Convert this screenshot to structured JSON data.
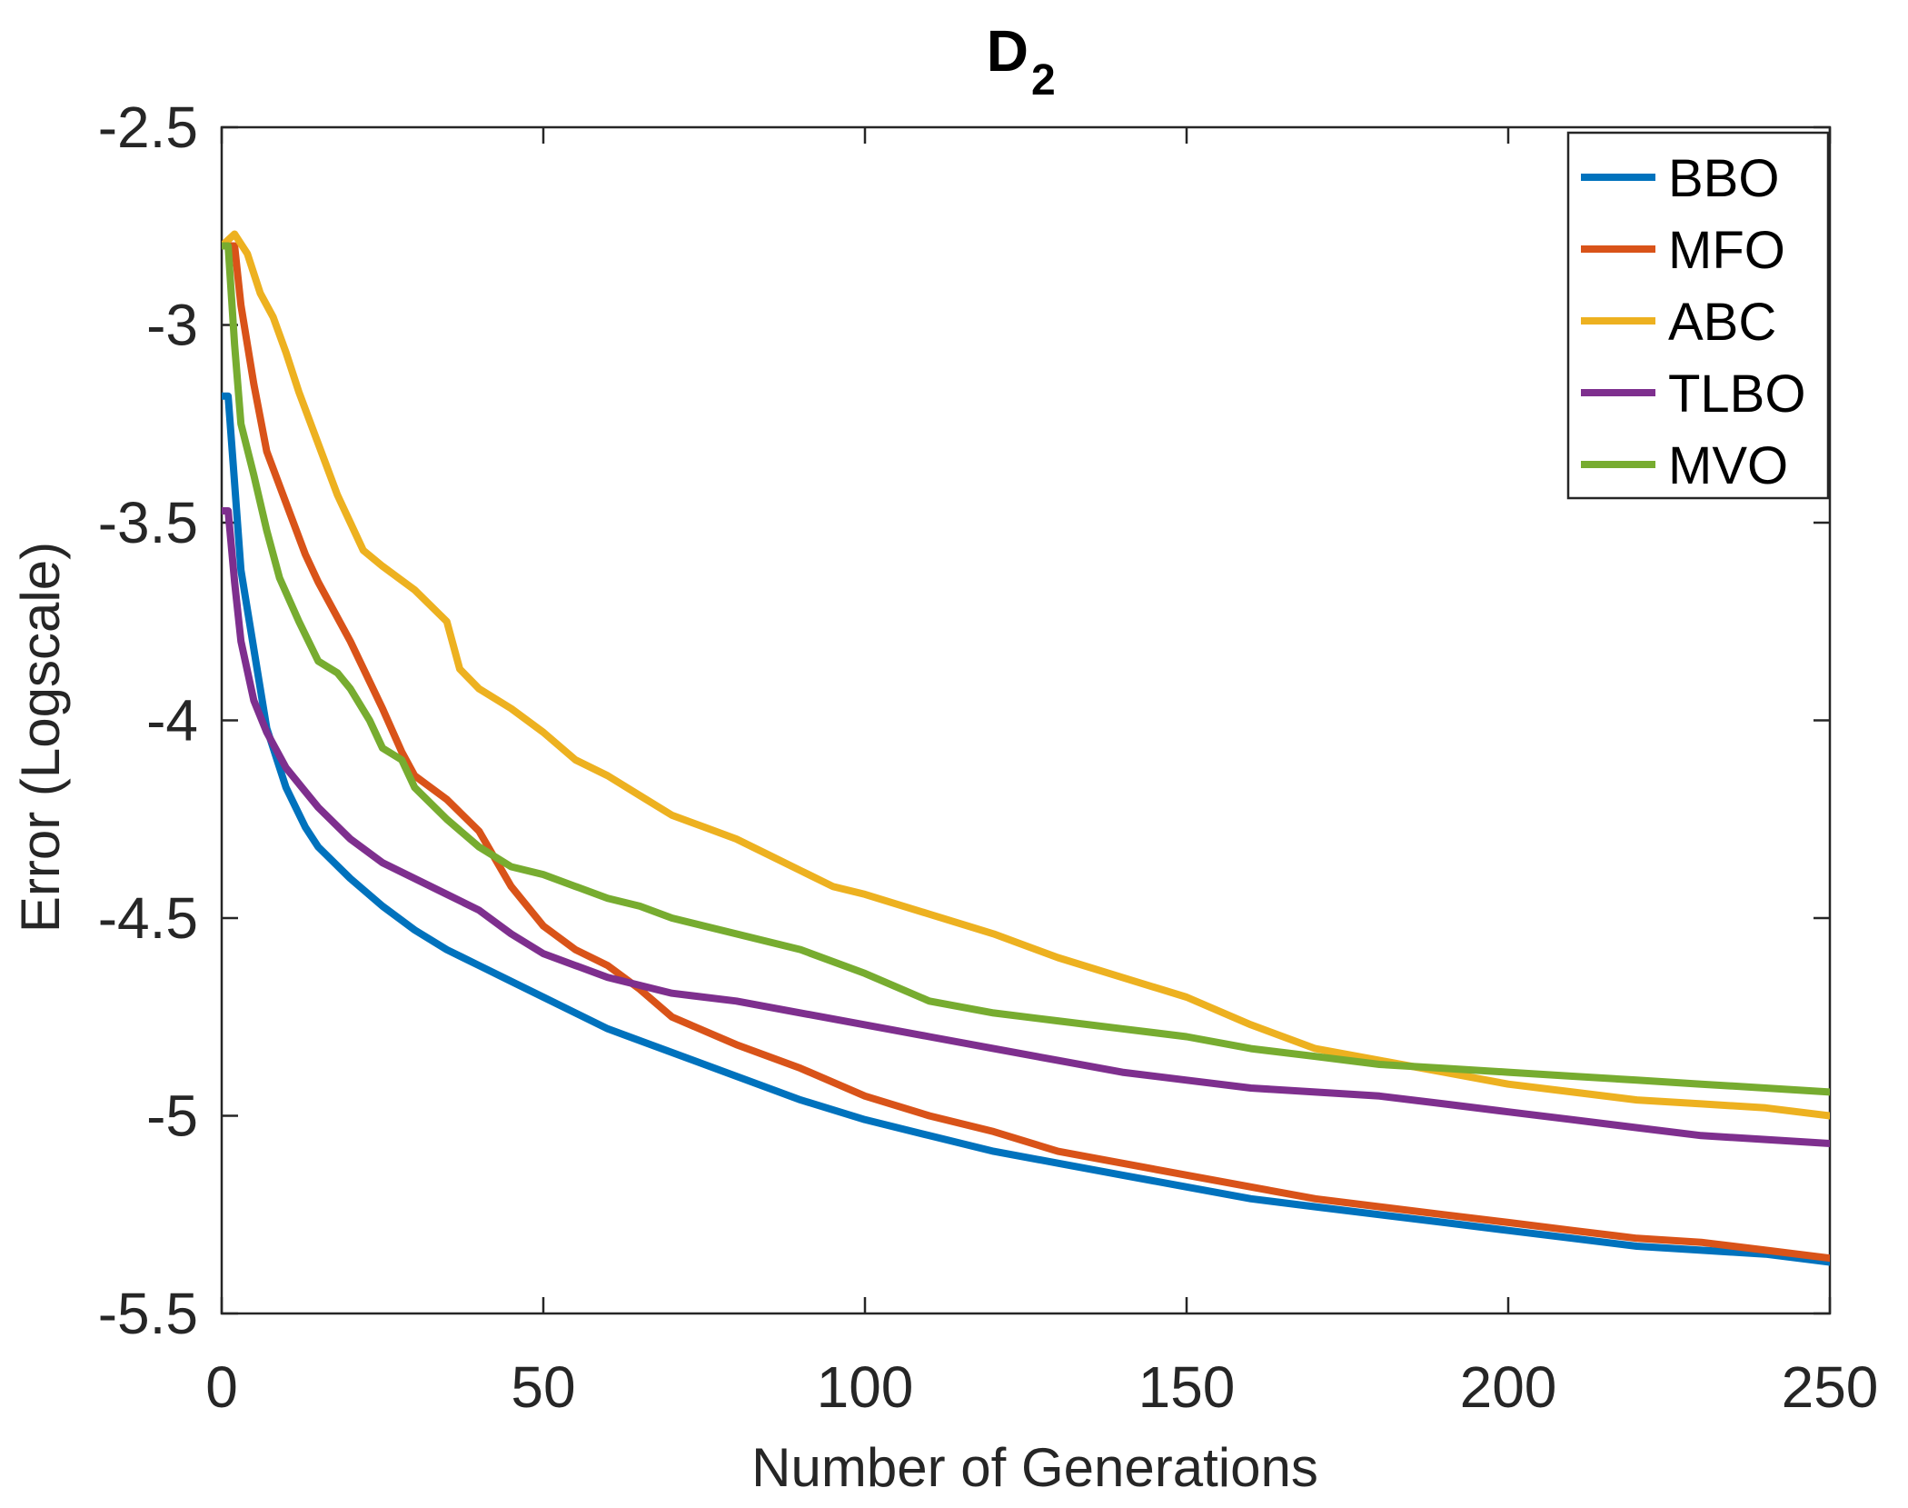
{
  "chart_data": {
    "type": "line",
    "title": "D",
    "title_subscript": "2",
    "xlabel": "Number of Generations",
    "ylabel": "Error (Logscale)",
    "xlim": [
      0,
      250
    ],
    "ylim": [
      -5.5,
      -2.5
    ],
    "xticks": [
      0,
      50,
      100,
      150,
      200,
      250
    ],
    "yticks": [
      -2.5,
      -3,
      -3.5,
      -4,
      -4.5,
      -5,
      -5.5
    ],
    "xtick_labels": [
      "0",
      "50",
      "100",
      "150",
      "200",
      "250"
    ],
    "ytick_labels": [
      "-2.5",
      "-3",
      "-3.5",
      "-4",
      "-4.5",
      "-5",
      "-5.5"
    ],
    "grid": false,
    "legend_position": "top-right",
    "series": [
      {
        "name": "BBO",
        "color": "#0072BD",
        "points": [
          [
            0,
            -3.18
          ],
          [
            1,
            -3.18
          ],
          [
            2,
            -3.4
          ],
          [
            3,
            -3.62
          ],
          [
            5,
            -3.82
          ],
          [
            7,
            -4.02
          ],
          [
            10,
            -4.17
          ],
          [
            13,
            -4.27
          ],
          [
            15,
            -4.32
          ],
          [
            20,
            -4.4
          ],
          [
            25,
            -4.47
          ],
          [
            30,
            -4.53
          ],
          [
            35,
            -4.58
          ],
          [
            40,
            -4.62
          ],
          [
            45,
            -4.66
          ],
          [
            50,
            -4.7
          ],
          [
            60,
            -4.78
          ],
          [
            70,
            -4.84
          ],
          [
            80,
            -4.9
          ],
          [
            90,
            -4.96
          ],
          [
            100,
            -5.01
          ],
          [
            110,
            -5.05
          ],
          [
            120,
            -5.09
          ],
          [
            130,
            -5.12
          ],
          [
            140,
            -5.15
          ],
          [
            150,
            -5.18
          ],
          [
            160,
            -5.21
          ],
          [
            170,
            -5.23
          ],
          [
            180,
            -5.25
          ],
          [
            190,
            -5.27
          ],
          [
            200,
            -5.29
          ],
          [
            210,
            -5.31
          ],
          [
            220,
            -5.33
          ],
          [
            230,
            -5.34
          ],
          [
            240,
            -5.35
          ],
          [
            250,
            -5.37
          ]
        ]
      },
      {
        "name": "MFO",
        "color": "#D95319",
        "points": [
          [
            0,
            -2.8
          ],
          [
            2,
            -2.8
          ],
          [
            3,
            -2.95
          ],
          [
            5,
            -3.15
          ],
          [
            7,
            -3.32
          ],
          [
            10,
            -3.45
          ],
          [
            13,
            -3.58
          ],
          [
            15,
            -3.65
          ],
          [
            20,
            -3.8
          ],
          [
            25,
            -3.97
          ],
          [
            28,
            -4.08
          ],
          [
            30,
            -4.14
          ],
          [
            35,
            -4.2
          ],
          [
            40,
            -4.28
          ],
          [
            45,
            -4.42
          ],
          [
            50,
            -4.52
          ],
          [
            55,
            -4.58
          ],
          [
            60,
            -4.62
          ],
          [
            65,
            -4.68
          ],
          [
            70,
            -4.75
          ],
          [
            80,
            -4.82
          ],
          [
            90,
            -4.88
          ],
          [
            100,
            -4.95
          ],
          [
            110,
            -5.0
          ],
          [
            120,
            -5.04
          ],
          [
            130,
            -5.09
          ],
          [
            140,
            -5.12
          ],
          [
            150,
            -5.15
          ],
          [
            160,
            -5.18
          ],
          [
            170,
            -5.21
          ],
          [
            180,
            -5.23
          ],
          [
            190,
            -5.25
          ],
          [
            200,
            -5.27
          ],
          [
            210,
            -5.29
          ],
          [
            220,
            -5.31
          ],
          [
            230,
            -5.32
          ],
          [
            240,
            -5.34
          ],
          [
            250,
            -5.36
          ]
        ]
      },
      {
        "name": "ABC",
        "color": "#EDB120",
        "points": [
          [
            0,
            -2.8
          ],
          [
            2,
            -2.77
          ],
          [
            4,
            -2.82
          ],
          [
            6,
            -2.92
          ],
          [
            8,
            -2.98
          ],
          [
            10,
            -3.07
          ],
          [
            12,
            -3.17
          ],
          [
            15,
            -3.3
          ],
          [
            18,
            -3.43
          ],
          [
            20,
            -3.5
          ],
          [
            22,
            -3.57
          ],
          [
            25,
            -3.61
          ],
          [
            30,
            -3.67
          ],
          [
            35,
            -3.75
          ],
          [
            37,
            -3.87
          ],
          [
            40,
            -3.92
          ],
          [
            45,
            -3.97
          ],
          [
            50,
            -4.03
          ],
          [
            55,
            -4.1
          ],
          [
            60,
            -4.14
          ],
          [
            65,
            -4.19
          ],
          [
            70,
            -4.24
          ],
          [
            75,
            -4.27
          ],
          [
            80,
            -4.3
          ],
          [
            85,
            -4.34
          ],
          [
            90,
            -4.38
          ],
          [
            95,
            -4.42
          ],
          [
            100,
            -4.44
          ],
          [
            110,
            -4.49
          ],
          [
            120,
            -4.54
          ],
          [
            130,
            -4.6
          ],
          [
            140,
            -4.65
          ],
          [
            150,
            -4.7
          ],
          [
            160,
            -4.77
          ],
          [
            170,
            -4.83
          ],
          [
            180,
            -4.86
          ],
          [
            190,
            -4.89
          ],
          [
            200,
            -4.92
          ],
          [
            210,
            -4.94
          ],
          [
            220,
            -4.96
          ],
          [
            230,
            -4.97
          ],
          [
            240,
            -4.98
          ],
          [
            250,
            -5.0
          ]
        ]
      },
      {
        "name": "TLBO",
        "color": "#7E2F8E",
        "points": [
          [
            0,
            -3.47
          ],
          [
            1,
            -3.47
          ],
          [
            2,
            -3.65
          ],
          [
            3,
            -3.8
          ],
          [
            5,
            -3.95
          ],
          [
            7,
            -4.03
          ],
          [
            10,
            -4.12
          ],
          [
            13,
            -4.18
          ],
          [
            15,
            -4.22
          ],
          [
            20,
            -4.3
          ],
          [
            25,
            -4.36
          ],
          [
            30,
            -4.4
          ],
          [
            35,
            -4.44
          ],
          [
            40,
            -4.48
          ],
          [
            45,
            -4.54
          ],
          [
            50,
            -4.59
          ],
          [
            55,
            -4.62
          ],
          [
            60,
            -4.65
          ],
          [
            65,
            -4.67
          ],
          [
            70,
            -4.69
          ],
          [
            80,
            -4.71
          ],
          [
            90,
            -4.74
          ],
          [
            100,
            -4.77
          ],
          [
            110,
            -4.8
          ],
          [
            120,
            -4.83
          ],
          [
            130,
            -4.86
          ],
          [
            140,
            -4.89
          ],
          [
            150,
            -4.91
          ],
          [
            160,
            -4.93
          ],
          [
            170,
            -4.94
          ],
          [
            180,
            -4.95
          ],
          [
            190,
            -4.97
          ],
          [
            200,
            -4.99
          ],
          [
            210,
            -5.01
          ],
          [
            220,
            -5.03
          ],
          [
            230,
            -5.05
          ],
          [
            240,
            -5.06
          ],
          [
            250,
            -5.07
          ]
        ]
      },
      {
        "name": "MVO",
        "color": "#77AC30",
        "points": [
          [
            0,
            -2.8
          ],
          [
            1,
            -2.8
          ],
          [
            2,
            -3.05
          ],
          [
            3,
            -3.25
          ],
          [
            5,
            -3.38
          ],
          [
            7,
            -3.52
          ],
          [
            9,
            -3.64
          ],
          [
            12,
            -3.75
          ],
          [
            15,
            -3.85
          ],
          [
            18,
            -3.88
          ],
          [
            20,
            -3.92
          ],
          [
            23,
            -4.0
          ],
          [
            25,
            -4.07
          ],
          [
            28,
            -4.1
          ],
          [
            30,
            -4.17
          ],
          [
            35,
            -4.25
          ],
          [
            40,
            -4.32
          ],
          [
            45,
            -4.37
          ],
          [
            50,
            -4.39
          ],
          [
            55,
            -4.42
          ],
          [
            60,
            -4.45
          ],
          [
            65,
            -4.47
          ],
          [
            70,
            -4.5
          ],
          [
            80,
            -4.54
          ],
          [
            90,
            -4.58
          ],
          [
            100,
            -4.64
          ],
          [
            110,
            -4.71
          ],
          [
            120,
            -4.74
          ],
          [
            130,
            -4.76
          ],
          [
            140,
            -4.78
          ],
          [
            150,
            -4.8
          ],
          [
            160,
            -4.83
          ],
          [
            170,
            -4.85
          ],
          [
            180,
            -4.87
          ],
          [
            190,
            -4.88
          ],
          [
            200,
            -4.89
          ],
          [
            210,
            -4.9
          ],
          [
            220,
            -4.91
          ],
          [
            230,
            -4.92
          ],
          [
            240,
            -4.93
          ],
          [
            250,
            -4.94
          ]
        ]
      }
    ]
  }
}
